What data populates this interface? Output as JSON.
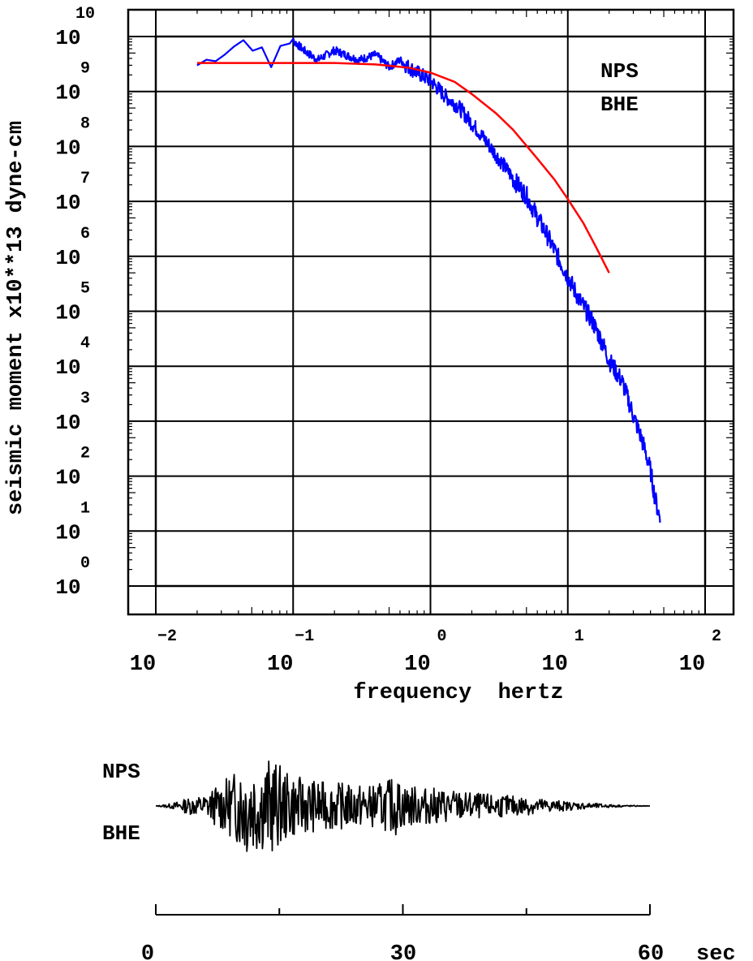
{
  "chart_data": [
    {
      "type": "line",
      "x_scale": "log",
      "y_scale": "log",
      "xlabel": "frequency  hertz",
      "ylabel": "seismic moment x10**13 dyne-cm",
      "x_ticks": [
        {
          "base": "10",
          "exp": "−2"
        },
        {
          "base": "10",
          "exp": "−1"
        },
        {
          "base": "10",
          "exp": "0"
        },
        {
          "base": "10",
          "exp": "1"
        },
        {
          "base": "10",
          "exp": "2"
        }
      ],
      "xlim": [
        0.01,
        100
      ],
      "y_ticks": [
        {
          "base": "10",
          "exp": "0"
        },
        {
          "base": "10",
          "exp": "1"
        },
        {
          "base": "10",
          "exp": "2"
        },
        {
          "base": "10",
          "exp": "3"
        },
        {
          "base": "10",
          "exp": "4"
        },
        {
          "base": "10",
          "exp": "5"
        },
        {
          "base": "10",
          "exp": "6"
        },
        {
          "base": "10",
          "exp": "7"
        },
        {
          "base": "10",
          "exp": "8"
        },
        {
          "base": "10",
          "exp": "9"
        },
        {
          "base": "10",
          "exp": "10"
        }
      ],
      "ylim": [
        1,
        10000000000
      ],
      "grid": true,
      "annotations": [
        "NPS",
        "BHE"
      ],
      "colors": {
        "observed": "#0000ff",
        "model": "#ff0000",
        "grid": "#000000"
      },
      "series": [
        {
          "role": "observed spectrum",
          "color": "#0000ff",
          "x": [
            0.02,
            0.03,
            0.045,
            0.06,
            0.07,
            0.08,
            0.09,
            0.1,
            0.12,
            0.15,
            0.2,
            0.3,
            0.4,
            0.5,
            0.6,
            0.8,
            1.0,
            1.3,
            1.6,
            2.0,
            2.5,
            3.0,
            4.0,
            5.0,
            6.0,
            7.0,
            8.0,
            10.0,
            12.0,
            15.0,
            18.0,
            20.0,
            25.0,
            30.0,
            35.0,
            40.0,
            43.0,
            45.0,
            47.0
          ],
          "y": [
            3000000000.0,
            5000000000.0,
            9000000000.0,
            5000000000.0,
            2500000000.0,
            7000000000.0,
            8000000000.0,
            9000000000.0,
            6000000000.0,
            4000000000.0,
            6000000000.0,
            4000000000.0,
            5000000000.0,
            3000000000.0,
            4000000000.0,
            2500000000.0,
            1800000000.0,
            900000000.0,
            600000000.0,
            300000000.0,
            150000000.0,
            80000000.0,
            30000000.0,
            15000000.0,
            6000000.0,
            3000000.0,
            1500000.0,
            500000.0,
            200000.0,
            80000.0,
            30000.0,
            15000.0,
            6000.0,
            1500.0,
            500.0,
            150.0,
            50,
            30,
            20
          ]
        },
        {
          "role": "model fit",
          "color": "#ff0000",
          "x": [
            0.02,
            0.05,
            0.1,
            0.2,
            0.4,
            0.7,
            1.0,
            1.5,
            2.0,
            3.0,
            4.0,
            6.0,
            8.0,
            10.0,
            13.0,
            16.0,
            20.0
          ],
          "y": [
            3300000000.0,
            3300000000.0,
            3300000000.0,
            3300000000.0,
            3100000000.0,
            2700000000.0,
            2200000000.0,
            1500000000.0,
            900000000.0,
            400000000.0,
            200000000.0,
            60000000.0,
            25000000.0,
            11000000.0,
            4000000.0,
            1500000.0,
            500000.0
          ]
        }
      ]
    },
    {
      "type": "line",
      "subtype": "seismogram",
      "xlabel": "",
      "x_ticks": [
        "0",
        "30",
        "60"
      ],
      "x_unit": "sec",
      "xlim": [
        0,
        60
      ],
      "labels": [
        "NPS",
        "BHE"
      ],
      "series": [
        {
          "color": "#000000",
          "t": [
            0,
            2,
            4,
            6,
            8,
            9,
            10,
            11,
            12,
            13,
            14,
            15,
            16,
            17,
            18,
            20,
            22,
            24,
            26,
            28,
            29,
            30,
            32,
            34,
            36,
            38,
            40,
            42,
            44,
            46,
            48,
            50,
            52,
            54,
            56,
            58,
            60
          ],
          "amplitude": [
            0.0,
            0.05,
            0.15,
            0.2,
            0.45,
            0.55,
            0.7,
            0.95,
            0.85,
            0.8,
            0.9,
            0.75,
            0.6,
            0.55,
            0.5,
            0.45,
            0.42,
            0.4,
            0.38,
            0.45,
            0.55,
            0.4,
            0.35,
            0.32,
            0.3,
            0.25,
            0.22,
            0.2,
            0.18,
            0.15,
            0.12,
            0.08,
            0.06,
            0.04,
            0.02,
            0.01,
            0.0
          ]
        }
      ]
    }
  ]
}
